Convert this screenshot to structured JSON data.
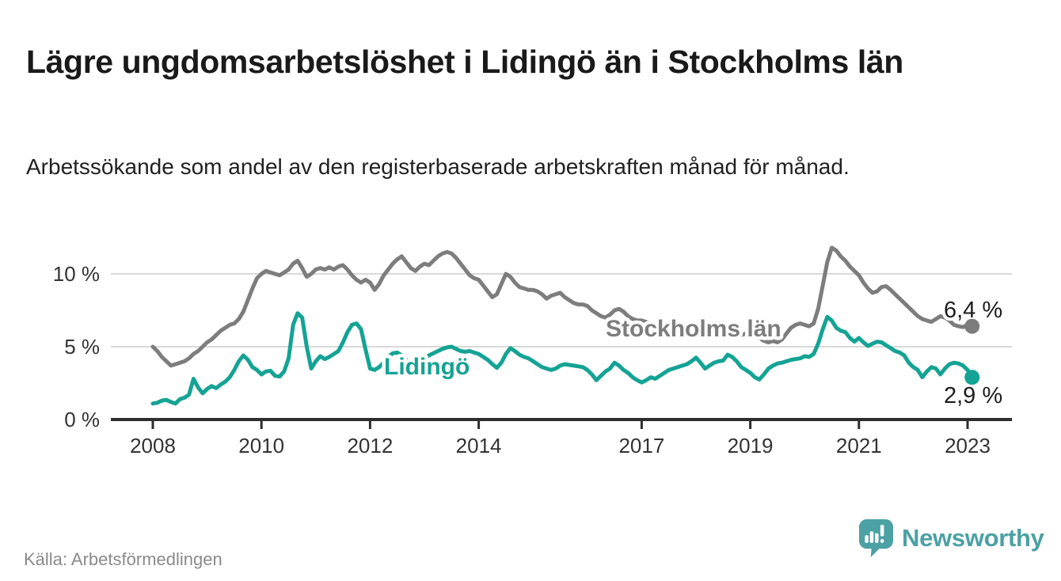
{
  "title": "Lägre ungdomsarbetslöshet i Lidingö än i Stockholms län",
  "subtitle": "Arbetssökande som andel av den registerbaserade arbetskraften månad för månad.",
  "source": "Källa: Arbetsförmedlingen",
  "branding": {
    "logo_text": "Newsworthy",
    "logo_color": "#4ba1a3"
  },
  "colors": {
    "stockholm_line": "#7d7d7d",
    "lidingo_line": "#14a394",
    "gridline": "#d9d9d9",
    "axis": "#2e2e2e",
    "tick_text": "#333333",
    "title_text": "#1a1a1a",
    "source_text": "#8a8a8a"
  },
  "chart_data": {
    "type": "line",
    "title": "Lägre ungdomsarbetslöshet i Lidingö än i Stockholms län",
    "subtitle": "Arbetssökande som andel av den registerbaserade arbetskraften månad för månad.",
    "unit": "%",
    "grid": true,
    "legend_position": "inline-labels",
    "y_axis": {
      "ticks": [
        "0 %",
        "5 %",
        "10 %"
      ],
      "values": [
        0,
        5,
        10
      ],
      "range": [
        0,
        12.3
      ]
    },
    "x_axis": {
      "tick_years": [
        2008,
        2010,
        2012,
        2014,
        2017,
        2019,
        2021,
        2023
      ],
      "start": "2008-01",
      "end": "2023-02"
    },
    "series": [
      {
        "name": "Stockholms län",
        "color": "#7d7d7d",
        "end_label": "6,4 %",
        "end_value": 6.4,
        "start": "2008-01",
        "monthly_values": [
          5.0,
          4.7,
          4.3,
          4.0,
          3.7,
          3.8,
          3.9,
          4.0,
          4.2,
          4.5,
          4.7,
          5.0,
          5.3,
          5.5,
          5.8,
          6.1,
          6.3,
          6.5,
          6.6,
          6.9,
          7.4,
          8.2,
          9.0,
          9.7,
          10.0,
          10.2,
          10.1,
          10.0,
          9.9,
          10.1,
          10.3,
          10.7,
          10.9,
          10.4,
          9.8,
          10.0,
          10.3,
          10.4,
          10.3,
          10.45,
          10.3,
          10.5,
          10.6,
          10.3,
          9.9,
          9.6,
          9.4,
          9.6,
          9.4,
          8.9,
          9.3,
          9.9,
          10.3,
          10.7,
          11.0,
          11.2,
          10.8,
          10.4,
          10.2,
          10.5,
          10.7,
          10.6,
          10.9,
          11.2,
          11.4,
          11.5,
          11.4,
          11.1,
          10.7,
          10.3,
          9.9,
          9.7,
          9.6,
          9.2,
          8.8,
          8.4,
          8.6,
          9.3,
          10.0,
          9.8,
          9.4,
          9.1,
          9.0,
          8.9,
          8.9,
          8.8,
          8.6,
          8.3,
          8.5,
          8.6,
          8.7,
          8.4,
          8.2,
          8.0,
          7.9,
          7.9,
          7.8,
          7.5,
          7.3,
          7.1,
          7.0,
          7.2,
          7.5,
          7.6,
          7.4,
          7.1,
          6.9,
          6.8,
          6.8,
          6.7,
          6.6,
          6.5,
          6.4,
          6.5,
          6.6,
          6.6,
          6.5,
          6.4,
          6.3,
          6.3,
          6.3,
          6.2,
          6.1,
          6.0,
          5.9,
          6.0,
          6.1,
          6.0,
          5.9,
          5.8,
          5.8,
          5.9,
          5.9,
          5.8,
          5.6,
          5.4,
          5.3,
          5.4,
          5.3,
          5.5,
          5.9,
          6.3,
          6.5,
          6.6,
          6.5,
          6.4,
          6.6,
          7.6,
          9.2,
          10.8,
          11.8,
          11.6,
          11.2,
          10.9,
          10.5,
          10.2,
          9.9,
          9.4,
          9.0,
          8.7,
          8.8,
          9.1,
          9.15,
          8.9,
          8.6,
          8.3,
          8.0,
          7.7,
          7.4,
          7.1,
          6.9,
          6.8,
          6.7,
          6.9,
          7.1,
          7.0,
          6.8,
          6.5,
          6.4,
          6.35,
          6.5,
          6.4
        ]
      },
      {
        "name": "Lidingö",
        "color": "#14a394",
        "end_label": "2,9 %",
        "end_value": 2.9,
        "start": "2008-01",
        "monthly_values": [
          1.1,
          1.15,
          1.3,
          1.35,
          1.2,
          1.1,
          1.4,
          1.5,
          1.7,
          2.8,
          2.2,
          1.8,
          2.1,
          2.3,
          2.15,
          2.4,
          2.6,
          2.9,
          3.4,
          4.0,
          4.4,
          4.1,
          3.6,
          3.4,
          3.1,
          3.3,
          3.35,
          3.0,
          2.95,
          3.3,
          4.2,
          6.5,
          7.3,
          7.0,
          5.0,
          3.5,
          4.0,
          4.35,
          4.15,
          4.3,
          4.5,
          4.7,
          5.3,
          6.0,
          6.5,
          6.6,
          6.2,
          4.8,
          3.5,
          3.4,
          3.6,
          3.9,
          4.3,
          4.55,
          4.6,
          4.4,
          4.1,
          3.9,
          3.8,
          4.0,
          4.2,
          4.4,
          4.55,
          4.7,
          4.85,
          4.95,
          5.0,
          4.85,
          4.7,
          4.65,
          4.7,
          4.6,
          4.5,
          4.3,
          4.1,
          3.8,
          3.55,
          3.9,
          4.5,
          4.9,
          4.7,
          4.45,
          4.3,
          4.2,
          4.0,
          3.8,
          3.6,
          3.5,
          3.4,
          3.5,
          3.7,
          3.8,
          3.75,
          3.7,
          3.65,
          3.6,
          3.4,
          3.1,
          2.7,
          3.0,
          3.3,
          3.5,
          3.9,
          3.7,
          3.4,
          3.2,
          2.9,
          2.7,
          2.55,
          2.7,
          2.9,
          2.8,
          3.0,
          3.2,
          3.4,
          3.5,
          3.6,
          3.7,
          3.8,
          4.0,
          4.25,
          3.9,
          3.5,
          3.7,
          3.9,
          4.0,
          4.05,
          4.45,
          4.3,
          4.0,
          3.6,
          3.4,
          3.2,
          2.9,
          2.75,
          3.1,
          3.5,
          3.7,
          3.85,
          3.9,
          4.0,
          4.1,
          4.15,
          4.2,
          4.35,
          4.3,
          4.5,
          5.2,
          6.2,
          7.05,
          6.8,
          6.3,
          6.1,
          6.0,
          5.6,
          5.35,
          5.6,
          5.3,
          5.05,
          5.2,
          5.35,
          5.3,
          5.1,
          4.9,
          4.7,
          4.6,
          4.4,
          3.9,
          3.6,
          3.4,
          2.9,
          3.3,
          3.6,
          3.5,
          3.1,
          3.5,
          3.8,
          3.9,
          3.85,
          3.7,
          3.4,
          2.9
        ]
      }
    ]
  }
}
